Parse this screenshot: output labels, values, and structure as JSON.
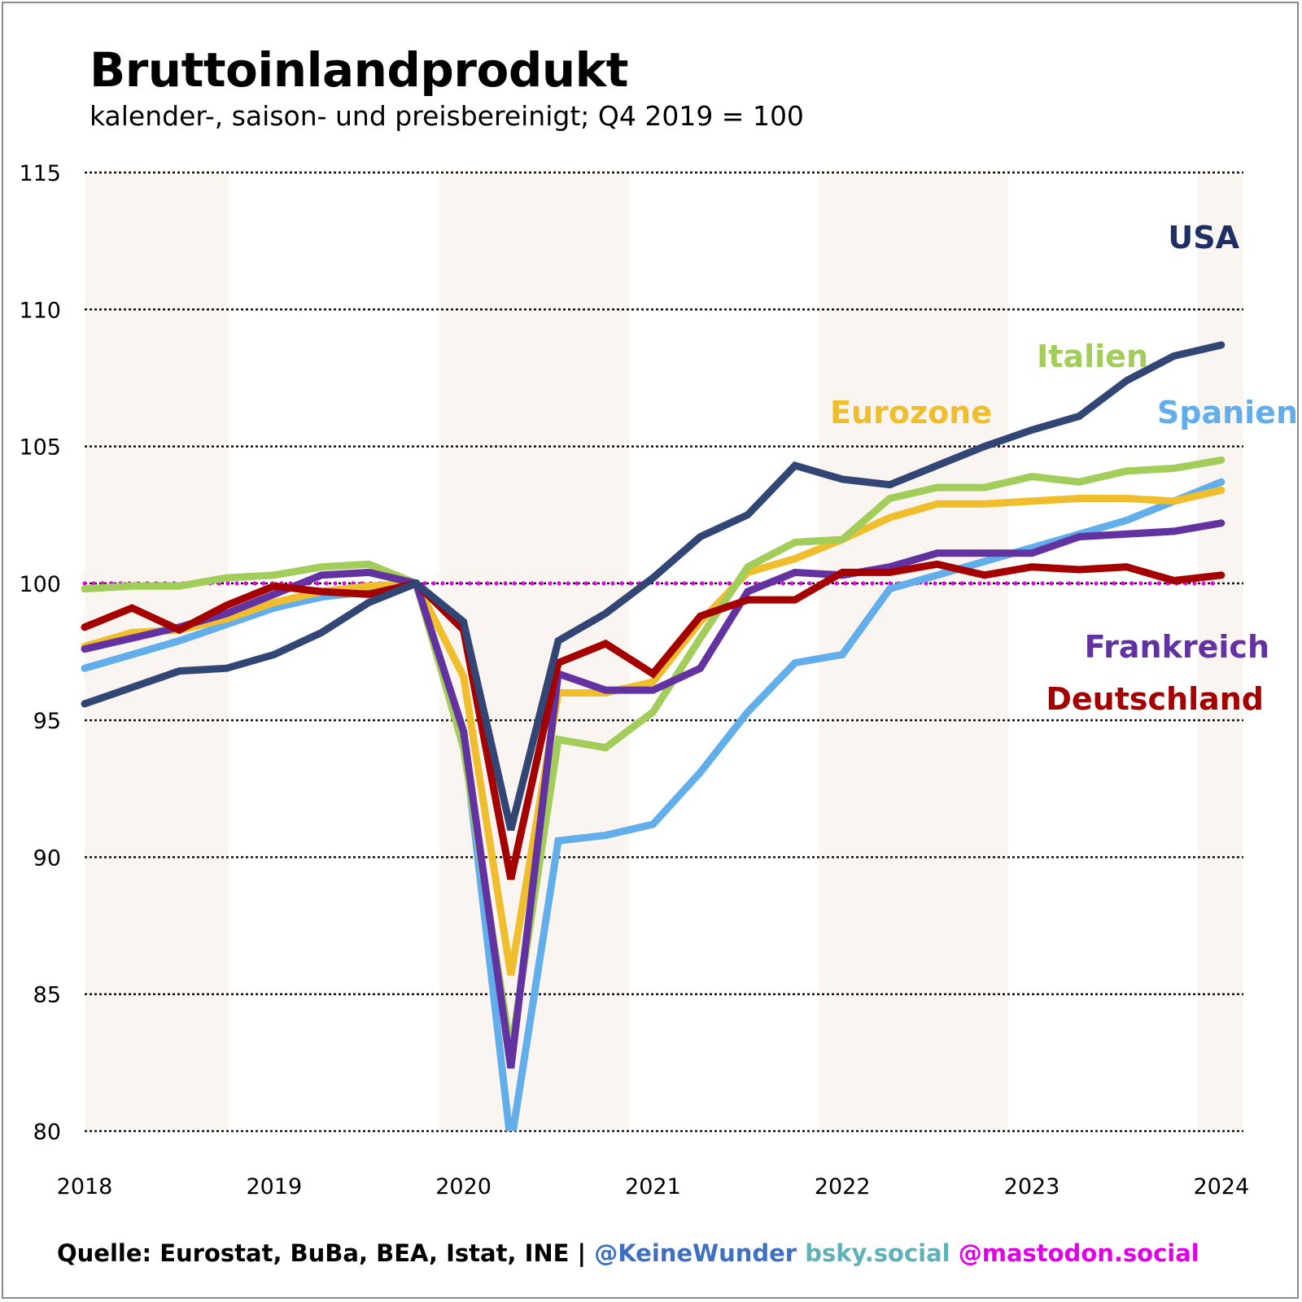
{
  "title": "Bruttoinlandprodukt",
  "subtitle": "kalender-, saison- und preisbereinigt; Q4 2019 = 100",
  "footer": {
    "source": "Quelle: Eurostat, BuBa, BEA, Istat, INE | ",
    "handle": "@KeineWunder",
    "bsky": " bsky.social",
    "mastodon": " @mastodon.social",
    "colors": {
      "source": "#000000",
      "handle": "#3f6fbf",
      "bsky": "#5fb0b7",
      "mastodon": "#e000e8"
    }
  },
  "chart_data": {
    "type": "line",
    "title": "Bruttoinlandprodukt",
    "subtitle": "kalender-, saison- und preisbereinigt; Q4 2019 = 100",
    "xlabel": "",
    "ylabel": "",
    "ylim": [
      80,
      115
    ],
    "yticks": [
      80,
      85,
      90,
      95,
      100,
      105,
      110,
      115
    ],
    "xticks": [
      "2018",
      "2019",
      "2020",
      "2021",
      "2022",
      "2023",
      "2024"
    ],
    "x": [
      "2018Q1",
      "2018Q2",
      "2018Q3",
      "2018Q4",
      "2019Q1",
      "2019Q2",
      "2019Q3",
      "2019Q4",
      "2020Q1",
      "2020Q2",
      "2020Q3",
      "2020Q4",
      "2021Q1",
      "2021Q2",
      "2021Q3",
      "2021Q4",
      "2022Q1",
      "2022Q2",
      "2022Q3",
      "2022Q4",
      "2023Q1",
      "2023Q2",
      "2023Q3",
      "2023Q4",
      "2024Q1"
    ],
    "grid": "horizontal dotted",
    "reference_line": {
      "value": 100,
      "style": "dotted",
      "color": "#e000e8"
    },
    "shaded_years": [
      "2018",
      "2020",
      "2022",
      "2024"
    ],
    "series": [
      {
        "name": "USA",
        "color": "#324675",
        "values": [
          95.6,
          96.2,
          96.8,
          96.9,
          97.4,
          98.2,
          99.3,
          100.0,
          98.6,
          91.0,
          97.9,
          98.9,
          100.2,
          101.7,
          102.5,
          104.3,
          103.8,
          103.6,
          104.3,
          105.0,
          105.6,
          106.1,
          107.4,
          108.3,
          108.7
        ]
      },
      {
        "name": "Italien",
        "color": "#a2cd5a",
        "values": [
          99.8,
          99.9,
          99.9,
          100.2,
          100.3,
          100.6,
          100.7,
          100.0,
          94.0,
          82.9,
          94.3,
          94.0,
          95.3,
          98.0,
          100.6,
          101.5,
          101.6,
          103.1,
          103.5,
          103.5,
          103.9,
          103.7,
          104.1,
          104.2,
          104.5
        ]
      },
      {
        "name": "Eurozone",
        "color": "#f0bd2d",
        "values": [
          97.7,
          98.2,
          98.3,
          98.7,
          99.3,
          99.7,
          99.9,
          100.0,
          96.6,
          85.7,
          96.0,
          96.0,
          96.4,
          98.6,
          100.4,
          100.9,
          101.6,
          102.4,
          102.9,
          102.9,
          103.0,
          103.1,
          103.1,
          103.0,
          103.4
        ]
      },
      {
        "name": "Spanien",
        "color": "#62aeea",
        "values": [
          96.9,
          97.4,
          97.9,
          98.5,
          99.1,
          99.5,
          99.7,
          100.0,
          94.5,
          79.5,
          90.6,
          90.8,
          91.2,
          93.1,
          95.3,
          97.1,
          97.4,
          99.8,
          100.3,
          100.8,
          101.3,
          101.8,
          102.3,
          103.0,
          103.7
        ]
      },
      {
        "name": "Frankreich",
        "color": "#6232a0",
        "values": [
          97.6,
          98.0,
          98.4,
          98.9,
          99.6,
          100.3,
          100.4,
          100.0,
          94.6,
          82.3,
          96.7,
          96.1,
          96.1,
          96.9,
          99.7,
          100.4,
          100.3,
          100.6,
          101.1,
          101.1,
          101.1,
          101.7,
          101.8,
          101.9,
          102.2
        ]
      },
      {
        "name": "Deutschland",
        "color": "#a50000",
        "values": [
          98.4,
          99.1,
          98.3,
          99.2,
          99.9,
          99.7,
          99.6,
          100.0,
          98.3,
          89.2,
          97.1,
          97.8,
          96.7,
          98.8,
          99.4,
          99.4,
          100.4,
          100.4,
          100.7,
          100.3,
          100.6,
          100.5,
          100.6,
          100.1,
          100.3
        ]
      }
    ],
    "annotations": [
      "USA",
      "Italien",
      "Eurozone",
      "Spanien",
      "Frankreich",
      "Deutschland"
    ]
  }
}
